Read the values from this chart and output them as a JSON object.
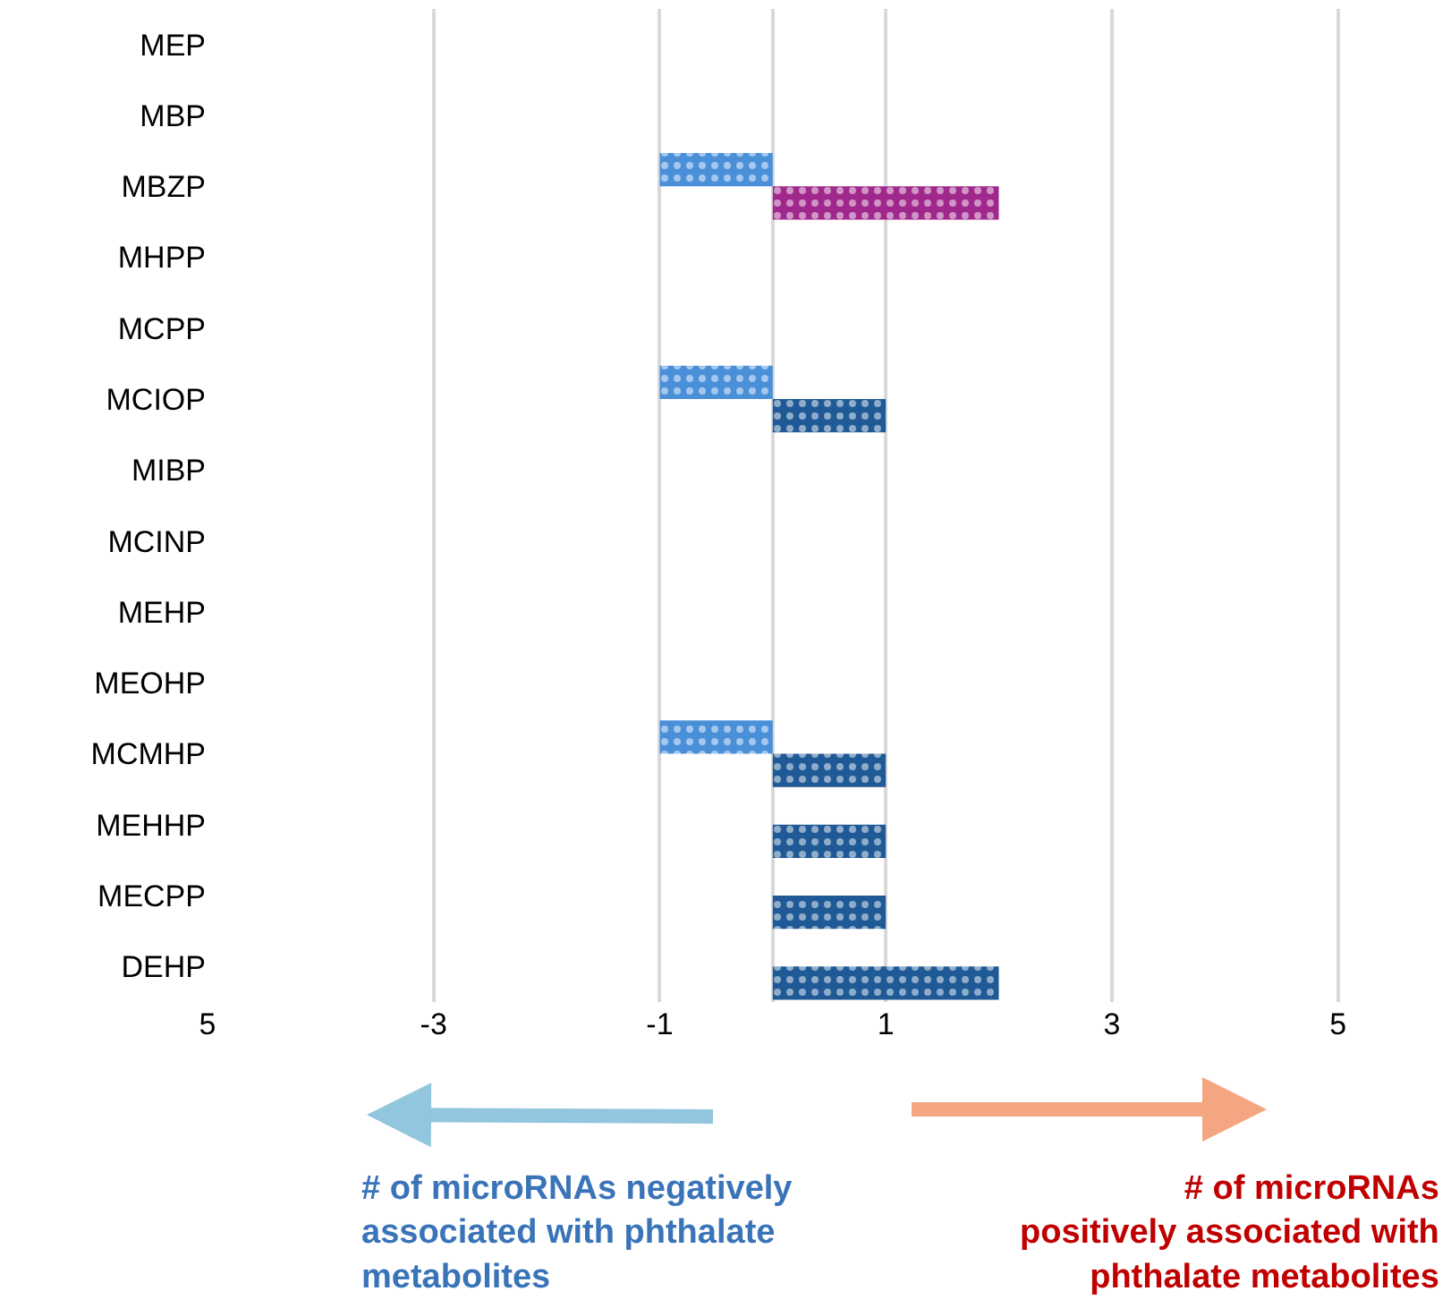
{
  "chart_data": {
    "type": "bar",
    "orientation": "horizontal",
    "categories": [
      "MEP",
      "MBP",
      "MBZP",
      "MHPP",
      "MCPP",
      "MCIOP",
      "MIBP",
      "MCINP",
      "MEHP",
      "MEOHP",
      "MCMHP",
      "MEHHP",
      "MECPP",
      "DEHP"
    ],
    "series": [
      {
        "color": "#4a90d9",
        "values": [
          null,
          null,
          -1,
          null,
          null,
          -1,
          null,
          null,
          null,
          null,
          -1,
          null,
          null,
          null
        ]
      },
      {
        "color": "#1f5a96",
        "colors": [
          "#1f5a96",
          "#1f5a96",
          "#a0288c",
          "#1f5a96",
          "#1f5a96",
          "#1f5a96",
          "#1f5a96",
          "#1f5a96",
          "#1f5a96",
          "#1f5a96",
          "#1f5a96",
          "#1f5a96",
          "#1f5a96",
          "#1f5a96"
        ],
        "values": [
          null,
          null,
          2,
          null,
          null,
          1,
          null,
          null,
          null,
          null,
          1,
          1,
          1,
          2
        ]
      }
    ],
    "xlim": [
      -5,
      6
    ],
    "xticks": [
      {
        "value": -5,
        "label": "5"
      },
      -3,
      -1,
      1,
      3,
      5
    ],
    "grid": "x",
    "legend": false,
    "annotations": [
      "# of microRNAs negatively\nassociated with phthalate\nmetabolites",
      "# of microRNAs\npositively associated with\nphthalate metabolites"
    ]
  }
}
